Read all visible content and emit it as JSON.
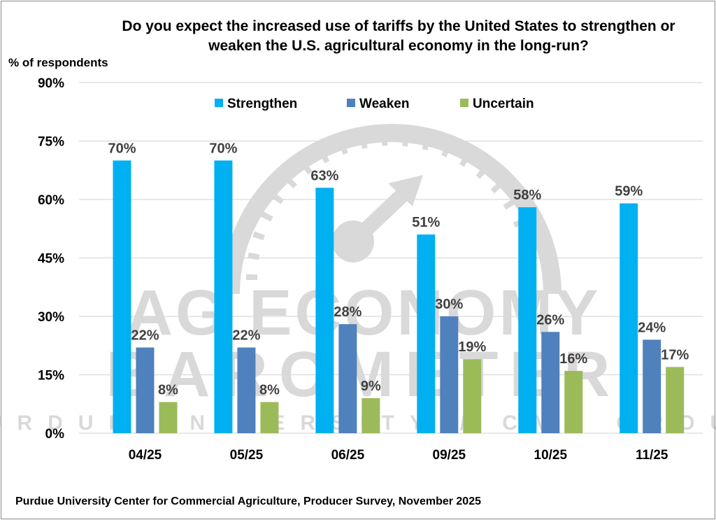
{
  "chart_data": {
    "type": "bar",
    "title": "Do you expect the increased use of tariffs by the United States to strengthen or weaken the U.S. agricultural economy in the long-run?",
    "ylabel": "% of respondents",
    "xlabel": "",
    "categories": [
      "04/25",
      "05/25",
      "06/25",
      "09/25",
      "10/25",
      "11/25"
    ],
    "series": [
      {
        "name": "Strengthen",
        "color": "#00B0F0",
        "values": [
          70,
          70,
          63,
          51,
          58,
          59
        ]
      },
      {
        "name": "Weaken",
        "color": "#4F81BD",
        "values": [
          22,
          22,
          28,
          30,
          26,
          24
        ]
      },
      {
        "name": "Uncertain",
        "color": "#9BBB59",
        "values": [
          8,
          8,
          9,
          19,
          16,
          17
        ]
      }
    ],
    "data_labels": [
      [
        "70%",
        "70%",
        "63%",
        "51%",
        "58%",
        "59%"
      ],
      [
        "22%",
        "22%",
        "28%",
        "30%",
        "26%",
        "24%"
      ],
      [
        "8%",
        "8%",
        "9%",
        "19%",
        "16%",
        "17%"
      ]
    ],
    "ylim": [
      0,
      90
    ],
    "yticks": [
      0,
      15,
      30,
      45,
      60,
      75,
      90
    ],
    "ytick_labels": [
      "0%",
      "15%",
      "30%",
      "45%",
      "60%",
      "75%",
      "90%"
    ],
    "grid": true,
    "legend_position": "top-center",
    "source": "Purdue University Center for Commercial Agriculture, Producer Survey, November 2025"
  },
  "watermark": {
    "line1": "AG ECONOMY",
    "line2": "BAROMETER",
    "line3": "PURDUE UNIVERSITY / CME GROUP"
  }
}
